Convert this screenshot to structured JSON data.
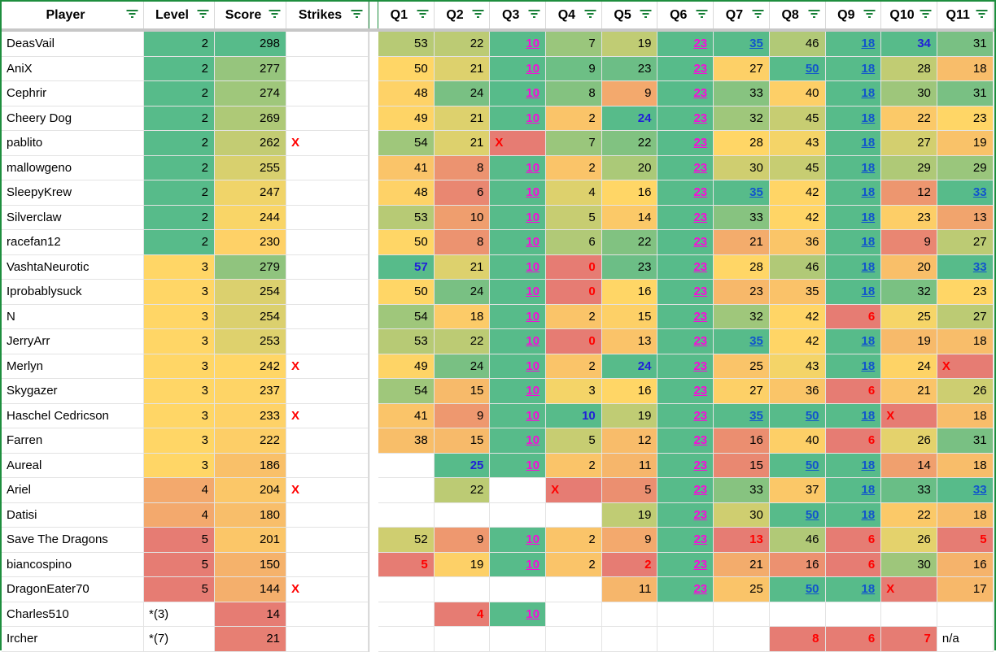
{
  "title": "Quiz Leaderboard Spreadsheet",
  "palette": {
    "scale_green": "#57bb8a",
    "scale_yellow": "#ffd666",
    "scale_red": "#e67c73",
    "magenta_link": "#f50cd9",
    "blue_link": "#1155cc",
    "blue_bold": "#2121d8",
    "red_text": "#ff0000",
    "border_green": "#1e8e3e",
    "filter_icon_green": "#188038",
    "grid_line": "#e3e3e3",
    "freeze_divider_gray": "#c7c7c7",
    "header_bg": "#ffffff"
  },
  "styles_legend": {
    "": "plain black, right-aligned",
    "m": "magenta bold underlined link",
    "b": "blue bold underlined link",
    "B": "blue bold (no underline)",
    "r": "red bold number",
    "x": "red bold X, left-aligned, red cell",
    "n": "plain black, left-aligned, no color scale"
  },
  "color_scale": {
    "type": "red-yellow-green",
    "midpoint": "percentile-50",
    "note": "per-column min=red, median=yellow, max=green; Level column inverted (low=green)"
  },
  "header": {
    "columns": [
      "Player",
      "Level",
      "Score",
      "Strikes",
      "Q1",
      "Q2",
      "Q3",
      "Q4",
      "Q5",
      "Q6",
      "Q7",
      "Q8",
      "Q9",
      "Q10",
      "Q11"
    ],
    "filter_icon": "filter-funnel"
  },
  "rows": [
    {
      "player": "DeasVail",
      "level": "2",
      "score": "298",
      "strikes": "",
      "q": [
        [
          "53",
          ""
        ],
        [
          "22",
          ""
        ],
        [
          "10",
          "m"
        ],
        [
          "7",
          ""
        ],
        [
          "19",
          ""
        ],
        [
          "23",
          "m"
        ],
        [
          "35",
          "b"
        ],
        [
          "46",
          ""
        ],
        [
          "18",
          "b"
        ],
        [
          "34",
          "B"
        ],
        [
          "31",
          ""
        ]
      ]
    },
    {
      "player": "AniX",
      "level": "2",
      "score": "277",
      "strikes": "",
      "q": [
        [
          "50",
          ""
        ],
        [
          "21",
          ""
        ],
        [
          "10",
          "m"
        ],
        [
          "9",
          ""
        ],
        [
          "23",
          ""
        ],
        [
          "23",
          "m"
        ],
        [
          "27",
          ""
        ],
        [
          "50",
          "b"
        ],
        [
          "18",
          "b"
        ],
        [
          "28",
          ""
        ],
        [
          "18",
          ""
        ]
      ]
    },
    {
      "player": "Cephrir",
      "level": "2",
      "score": "274",
      "strikes": "",
      "q": [
        [
          "48",
          ""
        ],
        [
          "24",
          ""
        ],
        [
          "10",
          "m"
        ],
        [
          "8",
          ""
        ],
        [
          "9",
          ""
        ],
        [
          "23",
          "m"
        ],
        [
          "33",
          ""
        ],
        [
          "40",
          ""
        ],
        [
          "18",
          "b"
        ],
        [
          "30",
          ""
        ],
        [
          "31",
          ""
        ]
      ]
    },
    {
      "player": "Cheery Dog",
      "level": "2",
      "score": "269",
      "strikes": "",
      "q": [
        [
          "49",
          ""
        ],
        [
          "21",
          ""
        ],
        [
          "10",
          "m"
        ],
        [
          "2",
          ""
        ],
        [
          "24",
          "B"
        ],
        [
          "23",
          "m"
        ],
        [
          "32",
          ""
        ],
        [
          "45",
          ""
        ],
        [
          "18",
          "b"
        ],
        [
          "22",
          ""
        ],
        [
          "23",
          ""
        ]
      ]
    },
    {
      "player": "pablito",
      "level": "2",
      "score": "262",
      "strikes": "X",
      "q": [
        [
          "54",
          ""
        ],
        [
          "21",
          ""
        ],
        [
          "X",
          "x"
        ],
        [
          "7",
          ""
        ],
        [
          "22",
          ""
        ],
        [
          "23",
          "m"
        ],
        [
          "28",
          ""
        ],
        [
          "43",
          ""
        ],
        [
          "18",
          "b"
        ],
        [
          "27",
          ""
        ],
        [
          "19",
          ""
        ]
      ]
    },
    {
      "player": "mallowgeno",
      "level": "2",
      "score": "255",
      "strikes": "",
      "q": [
        [
          "41",
          ""
        ],
        [
          "8",
          ""
        ],
        [
          "10",
          "m"
        ],
        [
          "2",
          ""
        ],
        [
          "20",
          ""
        ],
        [
          "23",
          "m"
        ],
        [
          "30",
          ""
        ],
        [
          "45",
          ""
        ],
        [
          "18",
          "b"
        ],
        [
          "29",
          ""
        ],
        [
          "29",
          ""
        ]
      ]
    },
    {
      "player": "SleepyKrew",
      "level": "2",
      "score": "247",
      "strikes": "",
      "q": [
        [
          "48",
          ""
        ],
        [
          "6",
          ""
        ],
        [
          "10",
          "m"
        ],
        [
          "4",
          ""
        ],
        [
          "16",
          ""
        ],
        [
          "23",
          "m"
        ],
        [
          "35",
          "b"
        ],
        [
          "42",
          ""
        ],
        [
          "18",
          "b"
        ],
        [
          "12",
          ""
        ],
        [
          "33",
          "b"
        ]
      ]
    },
    {
      "player": "Silverclaw",
      "level": "2",
      "score": "244",
      "strikes": "",
      "q": [
        [
          "53",
          ""
        ],
        [
          "10",
          ""
        ],
        [
          "10",
          "m"
        ],
        [
          "5",
          ""
        ],
        [
          "14",
          ""
        ],
        [
          "23",
          "m"
        ],
        [
          "33",
          ""
        ],
        [
          "42",
          ""
        ],
        [
          "18",
          "b"
        ],
        [
          "23",
          ""
        ],
        [
          "13",
          ""
        ]
      ]
    },
    {
      "player": "racefan12",
      "level": "2",
      "score": "230",
      "strikes": "",
      "q": [
        [
          "50",
          ""
        ],
        [
          "8",
          ""
        ],
        [
          "10",
          "m"
        ],
        [
          "6",
          ""
        ],
        [
          "22",
          ""
        ],
        [
          "23",
          "m"
        ],
        [
          "21",
          ""
        ],
        [
          "36",
          ""
        ],
        [
          "18",
          "b"
        ],
        [
          "9",
          ""
        ],
        [
          "27",
          ""
        ]
      ]
    },
    {
      "player": "VashtaNeurotic",
      "level": "3",
      "score": "279",
      "strikes": "",
      "q": [
        [
          "57",
          "B"
        ],
        [
          "21",
          ""
        ],
        [
          "10",
          "m"
        ],
        [
          "0",
          "r"
        ],
        [
          "23",
          ""
        ],
        [
          "23",
          "m"
        ],
        [
          "28",
          ""
        ],
        [
          "46",
          ""
        ],
        [
          "18",
          "b"
        ],
        [
          "20",
          ""
        ],
        [
          "33",
          "b"
        ]
      ]
    },
    {
      "player": "Iprobablysuck",
      "level": "3",
      "score": "254",
      "strikes": "",
      "q": [
        [
          "50",
          ""
        ],
        [
          "24",
          ""
        ],
        [
          "10",
          "m"
        ],
        [
          "0",
          "r"
        ],
        [
          "16",
          ""
        ],
        [
          "23",
          "m"
        ],
        [
          "23",
          ""
        ],
        [
          "35",
          ""
        ],
        [
          "18",
          "b"
        ],
        [
          "32",
          ""
        ],
        [
          "23",
          ""
        ]
      ]
    },
    {
      "player": "N",
      "level": "3",
      "score": "254",
      "strikes": "",
      "q": [
        [
          "54",
          ""
        ],
        [
          "18",
          ""
        ],
        [
          "10",
          "m"
        ],
        [
          "2",
          ""
        ],
        [
          "15",
          ""
        ],
        [
          "23",
          "m"
        ],
        [
          "32",
          ""
        ],
        [
          "42",
          ""
        ],
        [
          "6",
          "r"
        ],
        [
          "25",
          ""
        ],
        [
          "27",
          ""
        ]
      ]
    },
    {
      "player": "JerryArr",
      "level": "3",
      "score": "253",
      "strikes": "",
      "q": [
        [
          "53",
          ""
        ],
        [
          "22",
          ""
        ],
        [
          "10",
          "m"
        ],
        [
          "0",
          "r"
        ],
        [
          "13",
          ""
        ],
        [
          "23",
          "m"
        ],
        [
          "35",
          "b"
        ],
        [
          "42",
          ""
        ],
        [
          "18",
          "b"
        ],
        [
          "19",
          ""
        ],
        [
          "18",
          ""
        ]
      ]
    },
    {
      "player": "Merlyn",
      "level": "3",
      "score": "242",
      "strikes": "X",
      "q": [
        [
          "49",
          ""
        ],
        [
          "24",
          ""
        ],
        [
          "10",
          "m"
        ],
        [
          "2",
          ""
        ],
        [
          "24",
          "B"
        ],
        [
          "23",
          "m"
        ],
        [
          "25",
          ""
        ],
        [
          "43",
          ""
        ],
        [
          "18",
          "b"
        ],
        [
          "24",
          ""
        ],
        [
          "X",
          "x"
        ]
      ]
    },
    {
      "player": "Skygazer",
      "level": "3",
      "score": "237",
      "strikes": "",
      "q": [
        [
          "54",
          ""
        ],
        [
          "15",
          ""
        ],
        [
          "10",
          "m"
        ],
        [
          "3",
          ""
        ],
        [
          "16",
          ""
        ],
        [
          "23",
          "m"
        ],
        [
          "27",
          ""
        ],
        [
          "36",
          ""
        ],
        [
          "6",
          "r"
        ],
        [
          "21",
          ""
        ],
        [
          "26",
          ""
        ]
      ]
    },
    {
      "player": "Haschel Cedricson",
      "level": "3",
      "score": "233",
      "strikes": "X",
      "q": [
        [
          "41",
          ""
        ],
        [
          "9",
          ""
        ],
        [
          "10",
          "m"
        ],
        [
          "10",
          "B"
        ],
        [
          "19",
          ""
        ],
        [
          "23",
          "m"
        ],
        [
          "35",
          "b"
        ],
        [
          "50",
          "b"
        ],
        [
          "18",
          "b"
        ],
        [
          "X",
          "x"
        ],
        [
          "18",
          ""
        ]
      ]
    },
    {
      "player": "Farren",
      "level": "3",
      "score": "222",
      "strikes": "",
      "q": [
        [
          "38",
          ""
        ],
        [
          "15",
          ""
        ],
        [
          "10",
          "m"
        ],
        [
          "5",
          ""
        ],
        [
          "12",
          ""
        ],
        [
          "23",
          "m"
        ],
        [
          "16",
          ""
        ],
        [
          "40",
          ""
        ],
        [
          "6",
          "r"
        ],
        [
          "26",
          ""
        ],
        [
          "31",
          ""
        ]
      ]
    },
    {
      "player": "Aureal",
      "level": "3",
      "score": "186",
      "strikes": "",
      "q": [
        null,
        [
          "25",
          "B"
        ],
        [
          "10",
          "m"
        ],
        [
          "2",
          ""
        ],
        [
          "11",
          ""
        ],
        [
          "23",
          "m"
        ],
        [
          "15",
          ""
        ],
        [
          "50",
          "b"
        ],
        [
          "18",
          "b"
        ],
        [
          "14",
          ""
        ],
        [
          "18",
          ""
        ]
      ]
    },
    {
      "player": "Ariel",
      "level": "4",
      "score": "204",
      "strikes": "X",
      "q": [
        null,
        [
          "22",
          ""
        ],
        null,
        [
          "X",
          "x"
        ],
        [
          "5",
          ""
        ],
        [
          "23",
          "m"
        ],
        [
          "33",
          ""
        ],
        [
          "37",
          ""
        ],
        [
          "18",
          "b"
        ],
        [
          "33",
          ""
        ],
        [
          "33",
          "b"
        ]
      ]
    },
    {
      "player": "Datisi",
      "level": "4",
      "score": "180",
      "strikes": "",
      "q": [
        null,
        null,
        null,
        null,
        [
          "19",
          ""
        ],
        [
          "23",
          "m"
        ],
        [
          "30",
          ""
        ],
        [
          "50",
          "b"
        ],
        [
          "18",
          "b"
        ],
        [
          "22",
          ""
        ],
        [
          "18",
          ""
        ]
      ]
    },
    {
      "player": "Save The Dragons",
      "level": "5",
      "score": "201",
      "strikes": "",
      "q": [
        [
          "52",
          ""
        ],
        [
          "9",
          ""
        ],
        [
          "10",
          "m"
        ],
        [
          "2",
          ""
        ],
        [
          "9",
          ""
        ],
        [
          "23",
          "m"
        ],
        [
          "13",
          "r"
        ],
        [
          "46",
          ""
        ],
        [
          "6",
          "r"
        ],
        [
          "26",
          ""
        ],
        [
          "5",
          "r"
        ]
      ]
    },
    {
      "player": "biancospino",
      "level": "5",
      "score": "150",
      "strikes": "",
      "q": [
        [
          "5",
          "r"
        ],
        [
          "19",
          ""
        ],
        [
          "10",
          "m"
        ],
        [
          "2",
          ""
        ],
        [
          "2",
          "r"
        ],
        [
          "23",
          "m"
        ],
        [
          "21",
          ""
        ],
        [
          "16",
          ""
        ],
        [
          "6",
          "r"
        ],
        [
          "30",
          ""
        ],
        [
          "16",
          ""
        ]
      ]
    },
    {
      "player": "DragonEater70",
      "level": "5",
      "score": "144",
      "strikes": "X",
      "q": [
        null,
        null,
        null,
        null,
        [
          "11",
          ""
        ],
        [
          "23",
          "m"
        ],
        [
          "25",
          ""
        ],
        [
          "50",
          "b"
        ],
        [
          "18",
          "b"
        ],
        [
          "X",
          "x"
        ],
        [
          "17",
          ""
        ]
      ]
    },
    {
      "player": "Charles510",
      "level": "*(3)",
      "score": "14",
      "strikes": "",
      "q": [
        null,
        [
          "4",
          "r"
        ],
        [
          "10",
          "m"
        ],
        null,
        null,
        null,
        null,
        null,
        null,
        null,
        null
      ]
    },
    {
      "player": "Ircher",
      "level": "*(7)",
      "score": "21",
      "strikes": "",
      "q": [
        null,
        null,
        null,
        null,
        null,
        null,
        null,
        [
          "8",
          "r"
        ],
        [
          "6",
          "r"
        ],
        [
          "7",
          "r"
        ],
        [
          "n/a",
          "n"
        ]
      ]
    }
  ]
}
